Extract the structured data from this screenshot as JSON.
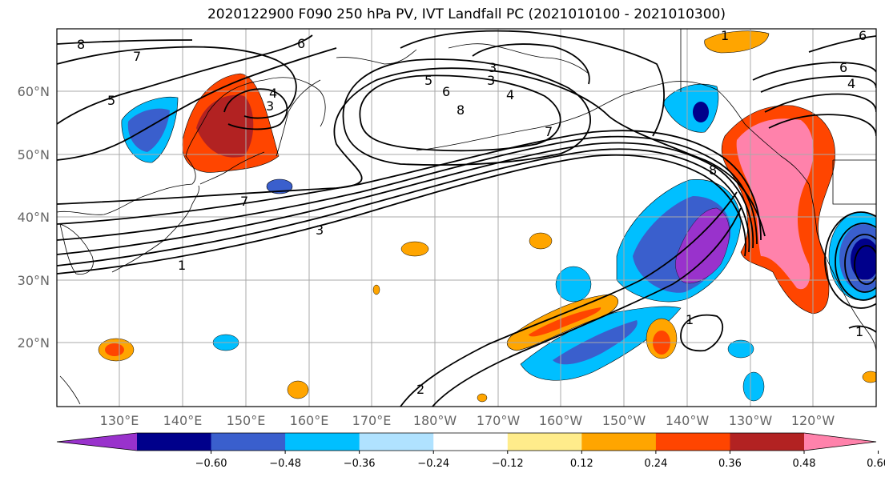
{
  "title": "2020122900 F090 250 hPa PV, IVT Landfall PC (2021010100 - 2021010300)",
  "lat_labels": [
    "60°N",
    "50°N",
    "40°N",
    "30°N",
    "20°N"
  ],
  "lon_labels": [
    "130°E",
    "140°E",
    "150°E",
    "160°E",
    "170°E",
    "180°W",
    "170°W",
    "160°W",
    "150°W",
    "140°W",
    "130°W",
    "120°W"
  ],
  "contour_labels": [
    "8",
    "7",
    "5",
    "6",
    "4",
    "3",
    "3",
    "6",
    "8",
    "5",
    "3",
    "4",
    "7",
    "7",
    "3",
    "1",
    "6",
    "8",
    "6",
    "4",
    "1",
    "2",
    "1",
    "1"
  ],
  "colorbar": {
    "colors": [
      "#9932CC",
      "#00008B",
      "#3A5FCD",
      "#00BFFF",
      "#B0E2FF",
      "#FFFFFF",
      "#FFEC8B",
      "#FFA500",
      "#FF4500",
      "#B22222",
      "#FF82AB"
    ],
    "ticks": [
      "−0.60",
      "−0.48",
      "−0.36",
      "−0.24",
      "−0.12",
      "0.12",
      "0.24",
      "0.36",
      "0.48",
      "0.60"
    ]
  }
}
